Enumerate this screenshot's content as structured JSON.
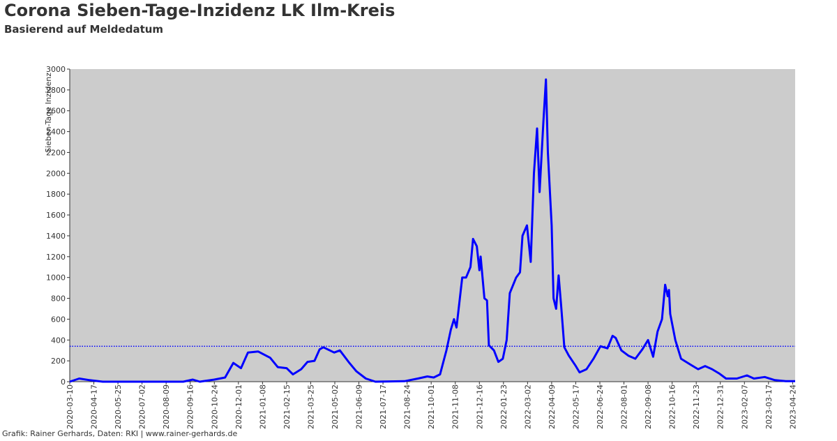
{
  "chart_data": {
    "type": "line",
    "title": "Corona Sieben-Tage-Inzidenz LK Ilm-Kreis",
    "subtitle": "Basierend auf Meldedatum",
    "y_label": "Sieben-Tage Inzidenz",
    "footer": "Grafik: Rainer Gerhards, Daten: RKI | www.rainer-gerhards.de",
    "background": "#cccccc",
    "reference_line": {
      "value": 340,
      "color": "#0000ff"
    },
    "x": [
      "2020-03-10",
      "2020-03-25",
      "2020-04-10",
      "2020-05-01",
      "2020-09-05",
      "2020-09-20",
      "2020-10-01",
      "2020-10-24",
      "2020-11-10",
      "2020-11-23",
      "2020-12-05",
      "2020-12-16",
      "2021-01-01",
      "2021-01-20",
      "2021-02-01",
      "2021-02-15",
      "2021-02-25",
      "2021-03-10",
      "2021-03-20",
      "2021-03-31",
      "2021-04-08",
      "2021-04-14",
      "2021-05-01",
      "2021-05-10",
      "2021-05-25",
      "2021-06-05",
      "2021-06-20",
      "2021-07-05",
      "2021-08-20",
      "2021-09-10",
      "2021-09-25",
      "2021-10-05",
      "2021-10-15",
      "2021-10-25",
      "2021-11-01",
      "2021-11-06",
      "2021-11-10",
      "2021-11-19",
      "2021-11-25",
      "2021-12-02",
      "2021-12-06",
      "2021-12-12",
      "2021-12-16",
      "2021-12-18",
      "2021-12-24",
      "2021-12-28",
      "2021-12-31",
      "2022-01-08",
      "2022-01-15",
      "2022-01-22",
      "2022-01-28",
      "2022-02-02",
      "2022-02-12",
      "2022-02-18",
      "2022-02-22",
      "2022-03-01",
      "2022-03-07",
      "2022-03-12",
      "2022-03-17",
      "2022-03-21",
      "2022-03-27",
      "2022-03-31",
      "2022-04-03",
      "2022-04-09",
      "2022-04-12",
      "2022-04-16",
      "2022-04-20",
      "2022-04-24",
      "2022-04-29",
      "2022-05-06",
      "2022-05-17",
      "2022-05-23",
      "2022-06-03",
      "2022-06-14",
      "2022-06-25",
      "2022-07-06",
      "2022-07-14",
      "2022-07-19",
      "2022-07-28",
      "2022-08-08",
      "2022-08-19",
      "2022-08-30",
      "2022-09-08",
      "2022-09-16",
      "2022-09-23",
      "2022-09-30",
      "2022-10-05",
      "2022-10-09",
      "2022-10-11",
      "2022-10-13",
      "2022-10-21",
      "2022-10-30",
      "2022-11-15",
      "2022-11-26",
      "2022-12-07",
      "2022-12-18",
      "2022-12-29",
      "2023-01-09",
      "2023-01-26",
      "2023-02-11",
      "2023-02-22",
      "2023-03-11",
      "2023-03-27",
      "2023-04-13",
      "2023-04-28"
    ],
    "series": [
      {
        "name": "Sieben-Tage Inzidenz",
        "color": "#0000ff",
        "values": [
          0,
          30,
          15,
          0,
          0,
          20,
          0,
          20,
          40,
          180,
          130,
          280,
          290,
          230,
          140,
          130,
          70,
          120,
          190,
          200,
          310,
          330,
          280,
          300,
          180,
          100,
          30,
          0,
          5,
          30,
          50,
          40,
          70,
          300,
          500,
          600,
          520,
          1000,
          1000,
          1100,
          1370,
          1300,
          1070,
          1200,
          800,
          780,
          350,
          300,
          190,
          220,
          400,
          850,
          1000,
          1050,
          1400,
          1500,
          1150,
          2000,
          2430,
          1820,
          2500,
          2900,
          2200,
          1500,
          800,
          700,
          1020,
          730,
          330,
          250,
          150,
          90,
          120,
          220,
          340,
          320,
          440,
          420,
          300,
          250,
          220,
          310,
          400,
          240,
          480,
          600,
          930,
          820,
          880,
          650,
          400,
          220,
          160,
          120,
          150,
          120,
          80,
          30,
          30,
          60,
          30,
          45,
          15,
          5,
          5
        ]
      }
    ],
    "xlim": [
      "2020-03-10",
      "2023-04-28"
    ],
    "xticks": [
      "2020-03-10",
      "2020-04-17",
      "2020-05-25",
      "2020-07-02",
      "2020-08-09",
      "2020-09-16",
      "2020-10-24",
      "2020-12-01",
      "2021-01-08",
      "2021-02-15",
      "2021-03-25",
      "2021-05-02",
      "2021-06-09",
      "2021-07-17",
      "2021-08-24",
      "2021-10-01",
      "2021-11-08",
      "2021-12-16",
      "2022-01-23",
      "2022-03-02",
      "2022-04-09",
      "2022-05-17",
      "2022-06-24",
      "2022-08-01",
      "2022-09-08",
      "2022-10-16",
      "2022-11-23",
      "2022-12-31",
      "2023-02-07",
      "2023-03-17",
      "2023-04-24"
    ],
    "ylim": [
      0,
      3000
    ],
    "yticks": [
      0,
      200,
      400,
      600,
      800,
      1000,
      1200,
      1400,
      1600,
      1800,
      2000,
      2200,
      2400,
      2600,
      2800,
      3000
    ]
  }
}
